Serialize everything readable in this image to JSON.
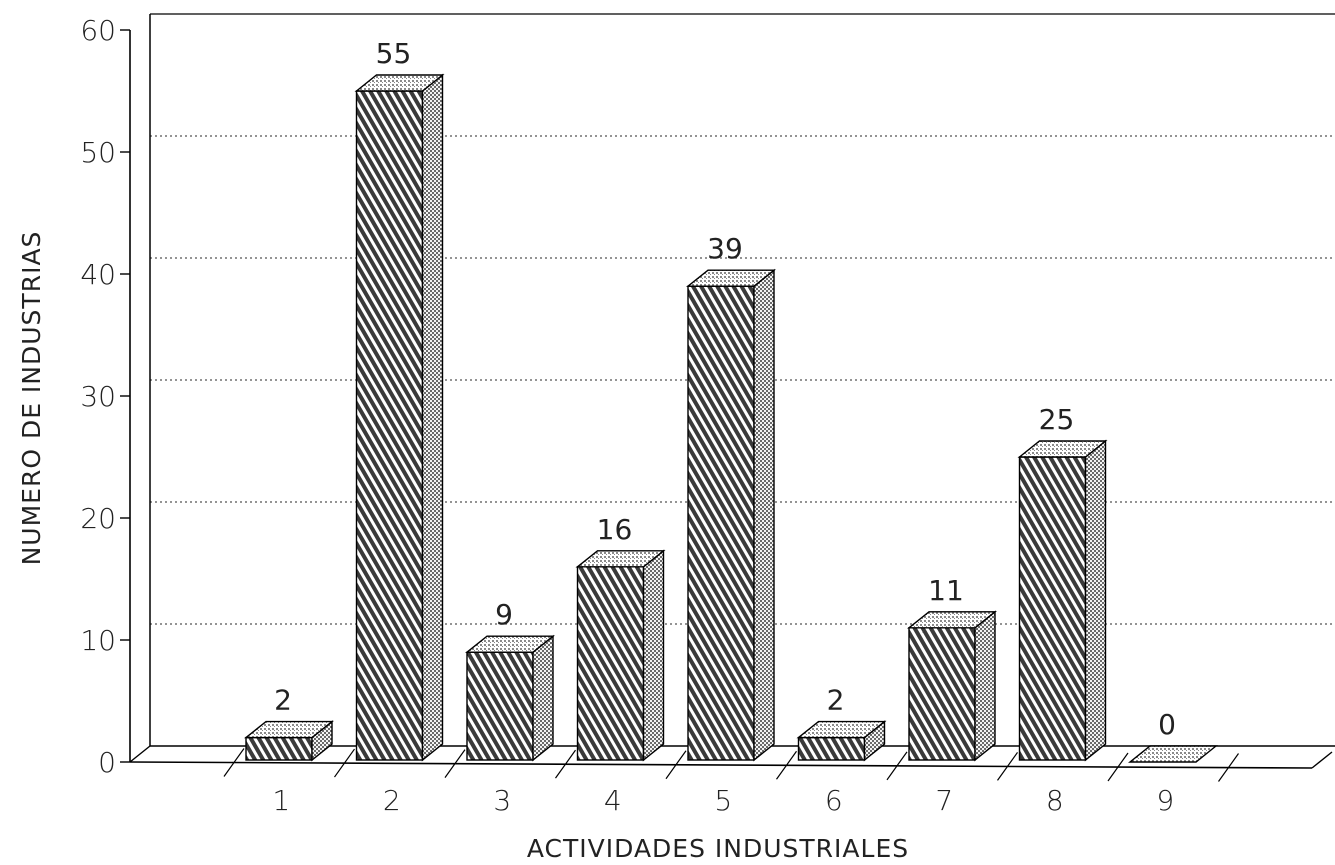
{
  "chart_data": {
    "type": "bar",
    "style": "3d-hatched",
    "xlabel": "ACTIVIDADES INDUSTRIALES",
    "ylabel": "NUMERO DE INDUSTRIAS",
    "categories": [
      "1",
      "2",
      "3",
      "4",
      "5",
      "6",
      "7",
      "8",
      "9"
    ],
    "values": [
      2,
      55,
      9,
      16,
      39,
      2,
      11,
      25,
      0
    ],
    "data_labels": [
      "2",
      "55",
      "9",
      "16",
      "39",
      "2",
      "11",
      "25",
      "0"
    ],
    "ylim": [
      0,
      60
    ],
    "yticks": [
      0,
      10,
      20,
      30,
      40,
      50,
      60
    ],
    "ytick_labels": [
      "0",
      "10",
      "20",
      "30",
      "40",
      "50",
      "60"
    ],
    "grid": "horizontal-dotted",
    "legend": "none",
    "colors": {
      "bar_front": "#4a4a4a",
      "bar_side": "#9a9a9a",
      "bar_top": "#cfcfcf",
      "line": "#000000",
      "grid": "#555555"
    }
  }
}
